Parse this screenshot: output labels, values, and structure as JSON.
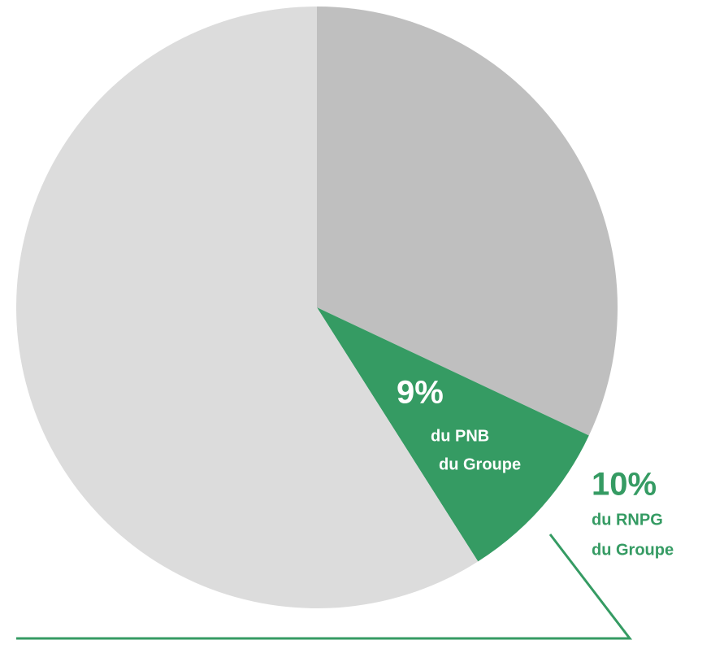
{
  "chart_data": {
    "type": "pie",
    "categories": [
      null,
      null,
      null
    ],
    "values": [
      32,
      9,
      59
    ],
    "value_labels": [
      null,
      "9%",
      null
    ],
    "colors": [
      "#bfbfbf",
      "#359b63",
      "#dcdcdc"
    ],
    "annotations": [
      "du PNB",
      "du Groupe",
      "10%",
      "du RNPG",
      "du Groupe"
    ]
  }
}
